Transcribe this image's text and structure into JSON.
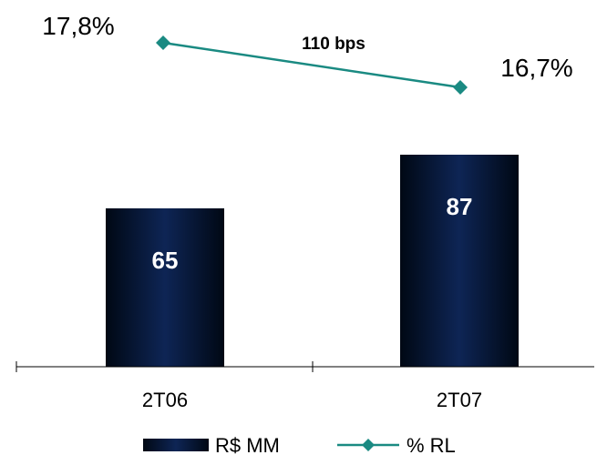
{
  "chart_data": {
    "type": "bar",
    "categories": [
      "2T06",
      "2T07"
    ],
    "series": [
      {
        "name": "R$ MM",
        "kind": "bar",
        "values": [
          65,
          87
        ],
        "labels": [
          "65",
          "87"
        ],
        "color": "#0a1a3c"
      },
      {
        "name": "% RL",
        "kind": "line",
        "values": [
          17.8,
          16.7
        ],
        "labels": [
          "17,8%",
          "16,7%"
        ],
        "color": "#1a8a82"
      }
    ],
    "annotation": "110 bps",
    "legend_position": "bottom",
    "grid": false
  }
}
